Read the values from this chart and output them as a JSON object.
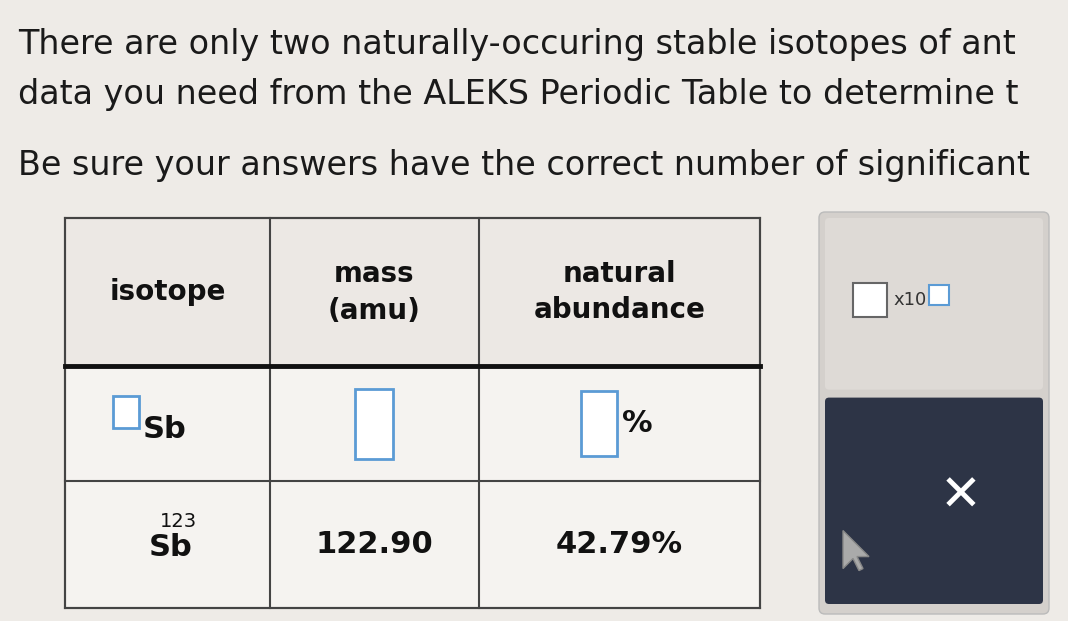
{
  "bg_color": "#e8e4e0",
  "text_line1": "There are only two naturally-occuring stable isotopes of ant",
  "text_line2": "data you need from the ALEKS Periodic Table to determine t",
  "text_line3": "Be sure your answers have the correct number of significant",
  "col_headers": [
    "isotope",
    "mass\n(amu)",
    "natural\nabundance"
  ],
  "title_fontsize": 24,
  "header_fontsize": 18,
  "body_fontsize": 19,
  "input_box_color": "#5b9bd5",
  "sidebar_bg": "#2d3446",
  "sidebar_panel_bg": "#d8d4d0",
  "table_line_color": "#444444",
  "table_bg": "#f5f3f0"
}
